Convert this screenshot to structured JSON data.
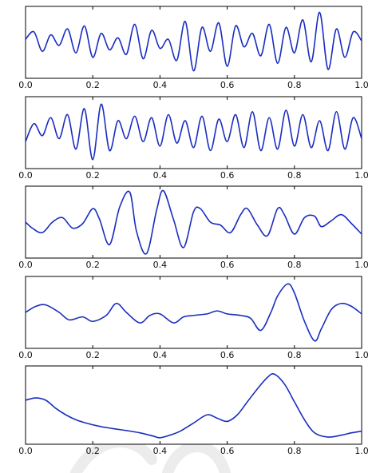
{
  "figure": {
    "line_color": "#1a2dbf"
  },
  "chart_data": [
    {
      "type": "line",
      "title": "",
      "xlabel": "",
      "ylabel": "",
      "xlim": [
        0.0,
        1.0
      ],
      "ylim": [
        -1.2,
        1.2
      ],
      "grid": false,
      "xticks": [
        "0.0",
        "0.2",
        "0.4",
        "0.6",
        "0.8",
        "1.0"
      ],
      "series": [
        {
          "x": [
            0.0,
            0.025,
            0.05,
            0.075,
            0.1,
            0.125,
            0.15,
            0.175,
            0.2,
            0.225,
            0.25,
            0.275,
            0.3,
            0.325,
            0.35,
            0.375,
            0.4,
            0.425,
            0.45,
            0.475,
            0.5,
            0.525,
            0.55,
            0.575,
            0.6,
            0.625,
            0.65,
            0.675,
            0.7,
            0.725,
            0.75,
            0.775,
            0.8,
            0.825,
            0.85,
            0.875,
            0.9,
            0.925,
            0.95,
            0.975,
            1.0
          ],
          "y": [
            0.1,
            0.35,
            -0.3,
            0.25,
            -0.1,
            0.45,
            -0.35,
            0.55,
            -0.5,
            0.3,
            -0.25,
            0.15,
            -0.4,
            0.6,
            -0.55,
            0.4,
            -0.2,
            0.1,
            -0.6,
            0.7,
            -0.95,
            0.5,
            -0.3,
            0.65,
            -0.8,
            0.55,
            -0.15,
            0.3,
            -0.45,
            0.6,
            -0.7,
            0.5,
            -0.35,
            0.75,
            -0.65,
            1.0,
            -0.9,
            0.45,
            -0.5,
            0.35,
            0.05
          ]
        }
      ]
    },
    {
      "type": "line",
      "title": "",
      "xlabel": "",
      "ylabel": "",
      "xlim": [
        0.0,
        1.0
      ],
      "ylim": [
        -1.2,
        1.2
      ],
      "grid": false,
      "xticks": [
        "0.0",
        "0.2",
        "0.4",
        "0.6",
        "0.8",
        "1.0"
      ],
      "series": [
        {
          "x": [
            0.0,
            0.025,
            0.05,
            0.075,
            0.1,
            0.125,
            0.15,
            0.175,
            0.2,
            0.225,
            0.25,
            0.275,
            0.3,
            0.325,
            0.35,
            0.375,
            0.4,
            0.425,
            0.45,
            0.475,
            0.5,
            0.525,
            0.55,
            0.575,
            0.6,
            0.625,
            0.65,
            0.675,
            0.7,
            0.725,
            0.75,
            0.775,
            0.8,
            0.825,
            0.85,
            0.875,
            0.9,
            0.925,
            0.95,
            0.975,
            1.0
          ],
          "y": [
            -0.3,
            0.3,
            -0.1,
            0.5,
            -0.2,
            0.6,
            -0.55,
            0.8,
            -0.9,
            0.95,
            -0.6,
            0.4,
            -0.2,
            0.55,
            -0.3,
            0.5,
            -0.45,
            0.6,
            -0.35,
            0.4,
            -0.5,
            0.55,
            -0.6,
            0.45,
            -0.3,
            0.6,
            -0.5,
            0.7,
            -0.6,
            0.5,
            -0.55,
            0.75,
            -0.45,
            0.6,
            -0.5,
            0.4,
            -0.6,
            0.7,
            -0.55,
            0.5,
            -0.2
          ]
        }
      ]
    },
    {
      "type": "line",
      "title": "",
      "xlabel": "",
      "ylabel": "",
      "xlim": [
        0.0,
        1.0
      ],
      "ylim": [
        -1.2,
        1.2
      ],
      "grid": false,
      "xticks": [
        "0.0",
        "0.2",
        "0.4",
        "0.6",
        "0.8",
        "1.0"
      ],
      "series": [
        {
          "x": [
            0.0,
            0.02,
            0.05,
            0.08,
            0.11,
            0.14,
            0.17,
            0.2,
            0.22,
            0.25,
            0.28,
            0.31,
            0.33,
            0.36,
            0.39,
            0.41,
            0.44,
            0.47,
            0.5,
            0.52,
            0.55,
            0.58,
            0.61,
            0.64,
            0.66,
            0.69,
            0.72,
            0.75,
            0.77,
            0.8,
            0.83,
            0.86,
            0.88,
            0.91,
            0.94,
            0.97,
            1.0
          ],
          "y": [
            0.0,
            -0.2,
            -0.35,
            0.0,
            0.15,
            -0.2,
            -0.05,
            0.45,
            0.1,
            -0.75,
            0.5,
            1.0,
            -0.3,
            -1.05,
            0.4,
            1.05,
            0.1,
            -0.85,
            0.35,
            0.45,
            0.0,
            -0.1,
            -0.35,
            0.25,
            0.45,
            -0.1,
            -0.45,
            0.45,
            0.25,
            -0.4,
            0.15,
            0.2,
            -0.15,
            0.05,
            0.25,
            -0.05,
            -0.4
          ]
        }
      ]
    },
    {
      "type": "line",
      "title": "",
      "xlabel": "",
      "ylabel": "",
      "xlim": [
        0.0,
        1.0
      ],
      "ylim": [
        -1.2,
        1.2
      ],
      "grid": false,
      "xticks": [
        "0.0",
        "0.2",
        "0.4",
        "0.6",
        "0.8",
        "1.0"
      ],
      "series": [
        {
          "x": [
            0.0,
            0.03,
            0.06,
            0.1,
            0.13,
            0.17,
            0.2,
            0.24,
            0.27,
            0.3,
            0.34,
            0.37,
            0.4,
            0.44,
            0.47,
            0.5,
            0.54,
            0.57,
            0.6,
            0.64,
            0.67,
            0.7,
            0.73,
            0.75,
            0.78,
            0.8,
            0.83,
            0.86,
            0.88,
            0.91,
            0.94,
            0.97,
            1.0
          ],
          "y": [
            0.0,
            0.2,
            0.25,
            0.0,
            -0.25,
            -0.15,
            -0.3,
            -0.1,
            0.3,
            0.0,
            -0.35,
            -0.1,
            -0.05,
            -0.35,
            -0.15,
            -0.1,
            -0.05,
            0.05,
            -0.05,
            -0.1,
            -0.2,
            -0.6,
            0.0,
            0.55,
            0.95,
            0.65,
            -0.3,
            -0.95,
            -0.55,
            0.1,
            0.3,
            0.2,
            -0.05
          ]
        }
      ]
    },
    {
      "type": "line",
      "title": "",
      "xlabel": "",
      "ylabel": "",
      "xlim": [
        0.0,
        1.0
      ],
      "ylim": [
        -1.2,
        1.2
      ],
      "grid": false,
      "xticks": [
        "0.0",
        "0.2",
        "0.4",
        "0.6",
        "0.8",
        "1.0"
      ],
      "series": [
        {
          "x": [
            0.0,
            0.03,
            0.06,
            0.09,
            0.12,
            0.15,
            0.18,
            0.22,
            0.26,
            0.3,
            0.34,
            0.38,
            0.4,
            0.43,
            0.46,
            0.5,
            0.54,
            0.57,
            0.6,
            0.63,
            0.66,
            0.69,
            0.72,
            0.74,
            0.77,
            0.8,
            0.83,
            0.86,
            0.9,
            0.94,
            0.97,
            1.0
          ],
          "y": [
            0.15,
            0.22,
            0.15,
            -0.1,
            -0.3,
            -0.45,
            -0.55,
            -0.65,
            -0.72,
            -0.78,
            -0.85,
            -0.95,
            -1.0,
            -0.92,
            -0.8,
            -0.55,
            -0.3,
            -0.4,
            -0.5,
            -0.3,
            0.1,
            0.5,
            0.85,
            0.95,
            0.65,
            0.1,
            -0.45,
            -0.85,
            -0.98,
            -0.92,
            -0.85,
            -0.8
          ]
        }
      ]
    }
  ]
}
